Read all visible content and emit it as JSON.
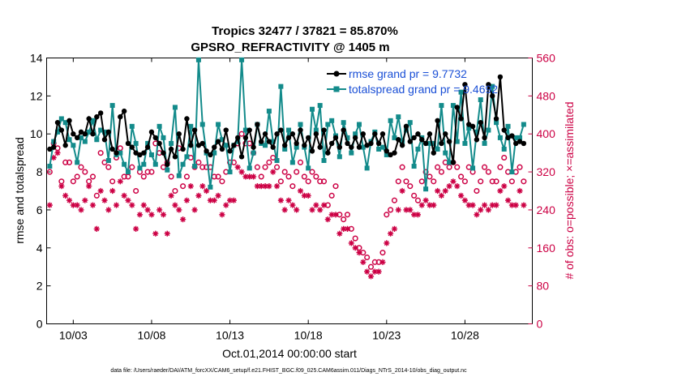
{
  "chart_data": {
    "type": "line",
    "title": "Tropics 32477 / 37821 = 85.870%",
    "subtitle": "GPSRO_REFRACTIVITY @ 1405 m",
    "xlabel": "Oct.01,2014 00:00:00 start",
    "ylabel": "rmse and totalspread",
    "y2label": "# of obs: o=possible; ×=assimilated",
    "xlim": [
      1.3,
      32.3
    ],
    "ylim": [
      0,
      14
    ],
    "y2lim": [
      0,
      560
    ],
    "xticks": [
      3,
      8,
      13,
      18,
      23,
      28
    ],
    "xticklabels": [
      "10/03",
      "10/08",
      "10/13",
      "10/18",
      "10/23",
      "10/28"
    ],
    "yticks": [
      0,
      2,
      4,
      6,
      8,
      10,
      12,
      14
    ],
    "y2ticks": [
      0,
      80,
      160,
      240,
      320,
      400,
      480,
      560
    ],
    "footnote": "data file: /Users/raeder/DAI/ATM_forcXX/CAM6_setup/f.e21.FHIST_BGC.f09_025.CAM6assim.011/Diags_NTrS_2014-10/obs_diag_output.nc",
    "legend": [
      {
        "label": "rmse grand pr = 9.7732",
        "color": "#000000"
      },
      {
        "label": "totalspread grand pr = 9.4692",
        "color": "#138b8b"
      }
    ],
    "colors": {
      "rmse": "#000000",
      "spread": "#138b8b",
      "obs": "#cc0044"
    },
    "x": [
      1.5,
      1.75,
      2.0,
      2.25,
      2.5,
      2.75,
      3.0,
      3.25,
      3.5,
      3.75,
      4.0,
      4.25,
      4.5,
      4.75,
      5.0,
      5.25,
      5.5,
      5.75,
      6.0,
      6.25,
      6.5,
      6.75,
      7.0,
      7.25,
      7.5,
      7.75,
      8.0,
      8.25,
      8.5,
      8.75,
      9.0,
      9.25,
      9.5,
      9.75,
      10.0,
      10.25,
      10.5,
      10.75,
      11.0,
      11.25,
      11.5,
      11.75,
      12.0,
      12.25,
      12.5,
      12.75,
      13.0,
      13.25,
      13.5,
      13.75,
      14.0,
      14.25,
      14.5,
      14.75,
      15.0,
      15.25,
      15.5,
      15.75,
      16.0,
      16.25,
      16.5,
      16.75,
      17.0,
      17.25,
      17.5,
      17.75,
      18.0,
      18.25,
      18.5,
      18.75,
      19.0,
      19.25,
      19.5,
      19.75,
      20.0,
      20.25,
      20.5,
      20.75,
      21.0,
      21.25,
      21.5,
      21.75,
      22.0,
      22.25,
      22.5,
      22.75,
      23.0,
      23.25,
      23.5,
      23.75,
      24.0,
      24.25,
      24.5,
      24.75,
      25.0,
      25.25,
      25.5,
      25.75,
      26.0,
      26.25,
      26.5,
      26.75,
      27.0,
      27.25,
      27.5,
      27.75,
      28.0,
      28.25,
      28.5,
      28.75,
      29.0,
      29.25,
      29.5,
      29.75,
      30.0,
      30.25,
      30.5,
      30.75,
      31.0,
      31.25,
      31.5,
      31.75
    ],
    "series": [
      {
        "name": "rmse",
        "values": [
          9.2,
          9.3,
          10.6,
          10.2,
          9.4,
          10.7,
          10.0,
          9.8,
          10.1,
          10.0,
          10.8,
          10.0,
          10.9,
          11.1,
          9.7,
          10.1,
          9.2,
          9.0,
          10.9,
          11.2,
          9.5,
          9.3,
          9.0,
          8.9,
          9.0,
          9.3,
          10.1,
          9.8,
          9.5,
          9.0,
          8.4,
          9.2,
          8.8,
          10.0,
          9.2,
          10.8,
          9.4,
          10.2,
          9.4,
          9.5,
          9.1,
          8.9,
          9.3,
          9.6,
          9.2,
          10.2,
          9.1,
          9.4,
          9.8,
          8.8,
          9.8,
          10.2,
          9.3,
          10.5,
          9.6,
          10.0,
          9.6,
          9.3,
          10.0,
          10.2,
          9.4,
          9.8,
          10.0,
          9.5,
          10.2,
          9.4,
          9.8,
          9.1,
          10.0,
          9.3,
          10.2,
          9.0,
          9.5,
          9.8,
          9.3,
          10.2,
          9.5,
          9.3,
          9.8,
          9.3,
          10.0,
          9.4,
          9.5,
          10.0,
          9.5,
          10.0,
          9.1,
          8.9,
          9.0,
          9.7,
          9.4,
          10.4,
          9.6,
          9.8,
          10.0,
          9.7,
          9.5,
          10.0,
          9.0,
          10.7,
          9.5,
          10.0,
          9.6,
          8.5,
          11.4,
          10.8,
          12.6,
          10.5,
          10.4,
          9.7,
          10.6,
          9.8,
          12.6,
          12.0,
          10.8,
          13.0,
          10.2,
          9.8,
          9.9,
          9.5,
          9.6,
          9.5
        ]
      },
      {
        "name": "totalspread",
        "values": [
          8.3,
          9.6,
          10.1,
          10.8,
          10.6,
          9.7,
          9.4,
          8.5,
          9.8,
          9.6,
          10.1,
          10.7,
          9.7,
          10.2,
          10.1,
          8.6,
          11.5,
          8.9,
          9.0,
          8.4,
          8.0,
          10.4,
          9.5,
          8.2,
          8.4,
          9.5,
          8.9,
          8.4,
          10.4,
          9.8,
          8.1,
          9.5,
          11.4,
          7.8,
          8.4,
          8.8,
          10.4,
          8.3,
          13.9,
          10.5,
          9.0,
          7.2,
          9.0,
          10.5,
          9.7,
          9.4,
          8.0,
          9.4,
          9.6,
          13.9,
          10.2,
          8.2,
          9.0,
          10.5,
          9.5,
          9.4,
          11.2,
          9.6,
          8.6,
          12.5,
          9.2,
          10.2,
          8.5,
          9.3,
          10.5,
          9.3,
          8.2,
          11.3,
          10.2,
          11.5,
          8.6,
          10.5,
          10.7,
          9.9,
          8.8,
          10.6,
          9.8,
          9.0,
          10.0,
          10.5,
          9.3,
          8.2,
          9.6,
          10.1,
          9.2,
          9.3,
          8.9,
          10.7,
          9.8,
          10.9,
          9.6,
          10.2,
          10.6,
          8.3,
          9.2,
          9.8,
          7.1,
          9.5,
          9.5,
          9.2,
          11.5,
          9.0,
          8.5,
          11.5,
          9.6,
          12.2,
          9.5,
          10.3,
          8.2,
          10.1,
          11.8,
          9.5,
          10.2,
          12.5,
          10.6,
          9.8,
          9.2,
          10.4,
          8.0,
          9.8,
          9.8,
          10.5
        ]
      },
      {
        "name": "obs possible",
        "values": [
          320,
          380,
          370,
          300,
          340,
          340,
          300,
          310,
          330,
          320,
          300,
          310,
          270,
          360,
          340,
          330,
          300,
          350,
          370,
          310,
          310,
          330,
          280,
          320,
          310,
          320,
          320,
          380,
          360,
          330,
          340,
          310,
          280,
          370,
          290,
          310,
          350,
          330,
          340,
          330,
          330,
          330,
          310,
          310,
          300,
          320,
          340,
          340,
          380,
          400,
          380,
          380,
          360,
          330,
          310,
          330,
          340,
          350,
          330,
          300,
          320,
          310,
          290,
          320,
          340,
          310,
          300,
          320,
          310,
          300,
          300,
          250,
          270,
          290,
          230,
          220,
          230,
          200,
          180,
          160,
          150,
          140,
          120,
          130,
          130,
          150,
          230,
          240,
          260,
          300,
          330,
          300,
          290,
          270,
          260,
          300,
          320,
          310,
          300,
          330,
          320,
          340,
          330,
          340,
          330,
          310,
          300,
          330,
          320,
          280,
          300,
          330,
          320,
          300,
          300,
          330,
          350,
          320,
          300,
          320,
          330,
          300
        ]
      },
      {
        "name": "obs assimilated",
        "values": [
          250,
          350,
          360,
          290,
          270,
          260,
          250,
          250,
          240,
          260,
          290,
          250,
          200,
          280,
          260,
          240,
          280,
          250,
          300,
          270,
          260,
          250,
          200,
          230,
          250,
          240,
          230,
          190,
          240,
          230,
          190,
          270,
          250,
          240,
          220,
          260,
          290,
          240,
          270,
          290,
          280,
          260,
          260,
          270,
          230,
          250,
          260,
          260,
          330,
          320,
          310,
          310,
          310,
          290,
          290,
          290,
          290,
          320,
          290,
          260,
          240,
          260,
          250,
          240,
          280,
          270,
          270,
          240,
          250,
          240,
          250,
          220,
          230,
          230,
          190,
          200,
          200,
          170,
          160,
          150,
          130,
          110,
          100,
          110,
          110,
          130,
          170,
          190,
          200,
          240,
          280,
          240,
          240,
          230,
          230,
          250,
          260,
          250,
          250,
          280,
          270,
          280,
          290,
          300,
          290,
          270,
          260,
          250,
          250,
          230,
          240,
          250,
          240,
          250,
          250,
          280,
          290,
          260,
          250,
          250,
          280,
          250
        ]
      }
    ]
  }
}
